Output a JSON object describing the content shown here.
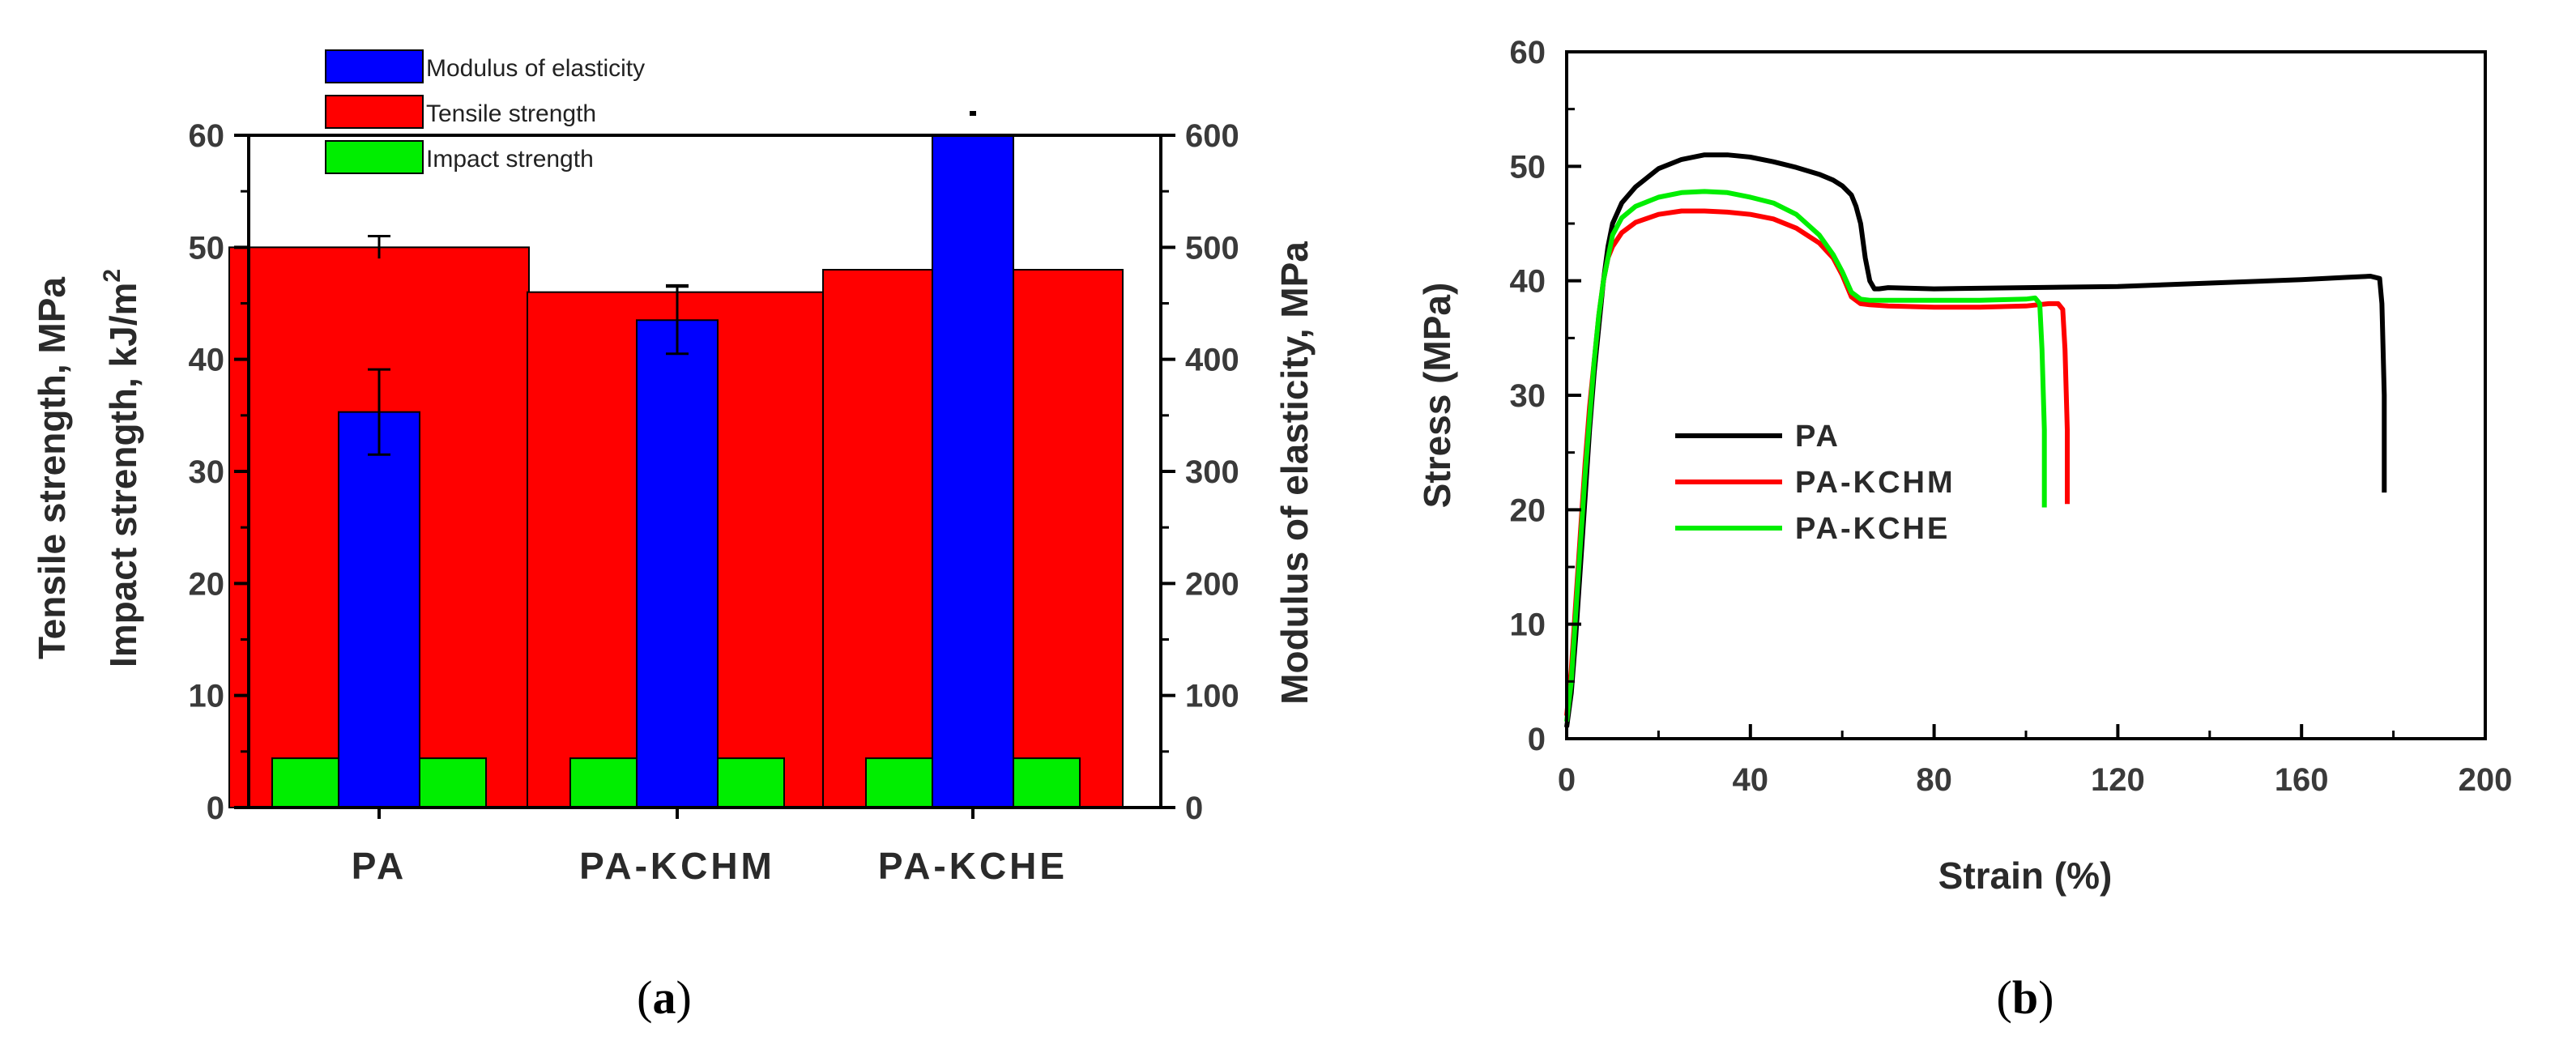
{
  "panels": {
    "a": {
      "label_open": "(",
      "label_letter": "a",
      "label_close": ")"
    },
    "b": {
      "label_open": "(",
      "label_letter": "b",
      "label_close": ")"
    }
  },
  "chart_data": [
    {
      "type": "bar",
      "title": "",
      "categories": [
        "PA",
        "PA-KCHM",
        "PA-KCHE"
      ],
      "ylabel_left_line1": "Tensile strength, MPa",
      "ylabel_left_line2_prefix": "Impact strength, kJ/m",
      "ylabel_left_line2_sup": "2",
      "ylabel_right": "Modulus of elasticity, MPa",
      "ylim_left": [
        0,
        60
      ],
      "yticks_left": [
        0,
        10,
        20,
        30,
        40,
        50,
        60
      ],
      "ylim_right": [
        0,
        600
      ],
      "yticks_right": [
        0,
        100,
        200,
        300,
        400,
        500,
        600
      ],
      "legend_position": "top-center",
      "series": [
        {
          "name": "Modulus of elasticity",
          "axis": "right",
          "color": "#0000ff",
          "values": [
            353,
            435,
            600
          ],
          "errors": [
            38,
            30,
            0
          ]
        },
        {
          "name": "Tensile strength",
          "axis": "left",
          "color": "#ff0000",
          "values": [
            50,
            46,
            48
          ],
          "errors": [
            1,
            0.6,
            0
          ]
        },
        {
          "name": "Impact strength",
          "axis": "left",
          "color": "#00ee00",
          "values": [
            4.4,
            4.4,
            4.4
          ],
          "errors": [
            0,
            0,
            0
          ]
        }
      ]
    },
    {
      "type": "line",
      "title": "",
      "xlabel": "Strain (%)",
      "ylabel": "Stress (MPa)",
      "xlim": [
        0,
        200
      ],
      "xticks": [
        0,
        40,
        80,
        120,
        160,
        200
      ],
      "ylim": [
        0,
        60
      ],
      "yticks": [
        0,
        10,
        20,
        30,
        40,
        50,
        60
      ],
      "legend_position": "center-left",
      "series": [
        {
          "name": "PA",
          "color": "#000000",
          "x": [
            0,
            1,
            2,
            3,
            4,
            5,
            6,
            7,
            8,
            9,
            10,
            12,
            15,
            20,
            25,
            30,
            35,
            40,
            45,
            50,
            55,
            58,
            60,
            62,
            63,
            64,
            65,
            66,
            67,
            68,
            70,
            80,
            100,
            120,
            140,
            160,
            170,
            175,
            177,
            177.5,
            178,
            178
          ],
          "y": [
            1,
            4,
            9,
            15,
            21,
            27,
            32,
            36,
            40,
            43,
            45,
            46.8,
            48.2,
            49.8,
            50.6,
            51,
            51,
            50.8,
            50.4,
            49.9,
            49.3,
            48.8,
            48.3,
            47.5,
            46.5,
            45,
            42,
            40,
            39.3,
            39.3,
            39.4,
            39.3,
            39.4,
            39.5,
            39.8,
            40.1,
            40.3,
            40.4,
            40.2,
            38,
            30,
            21.5
          ]
        },
        {
          "name": "PA-KCHM",
          "color": "#ff0000",
          "x": [
            0,
            1,
            2,
            3,
            4,
            5,
            6,
            7,
            8,
            9,
            10,
            12,
            15,
            20,
            25,
            30,
            35,
            40,
            45,
            50,
            55,
            58,
            60,
            62,
            64,
            66,
            70,
            80,
            90,
            100,
            105,
            107,
            108,
            108.5,
            109,
            109
          ],
          "y": [
            2,
            6,
            12,
            18,
            24,
            29,
            33,
            37,
            40,
            42,
            43,
            44.2,
            45.1,
            45.8,
            46.1,
            46.1,
            46,
            45.8,
            45.4,
            44.6,
            43.3,
            42,
            40.5,
            38.6,
            38,
            37.9,
            37.8,
            37.7,
            37.7,
            37.8,
            38,
            38,
            37.5,
            34,
            27,
            20.5
          ]
        },
        {
          "name": "PA-KCHE",
          "color": "#00ee00",
          "x": [
            0,
            1,
            2,
            3,
            4,
            5,
            6,
            7,
            8,
            9,
            10,
            12,
            15,
            20,
            25,
            30,
            35,
            40,
            45,
            50,
            55,
            58,
            60,
            62,
            64,
            66,
            70,
            80,
            90,
            100,
            102,
            103,
            103.5,
            104,
            104
          ],
          "y": [
            1.5,
            5,
            11,
            17,
            23,
            28,
            33,
            37,
            40,
            42,
            44,
            45.5,
            46.5,
            47.3,
            47.7,
            47.8,
            47.7,
            47.3,
            46.8,
            45.8,
            44,
            42.3,
            40.8,
            39,
            38.4,
            38.3,
            38.3,
            38.3,
            38.3,
            38.4,
            38.5,
            38,
            34,
            27,
            20.2
          ]
        }
      ]
    }
  ]
}
